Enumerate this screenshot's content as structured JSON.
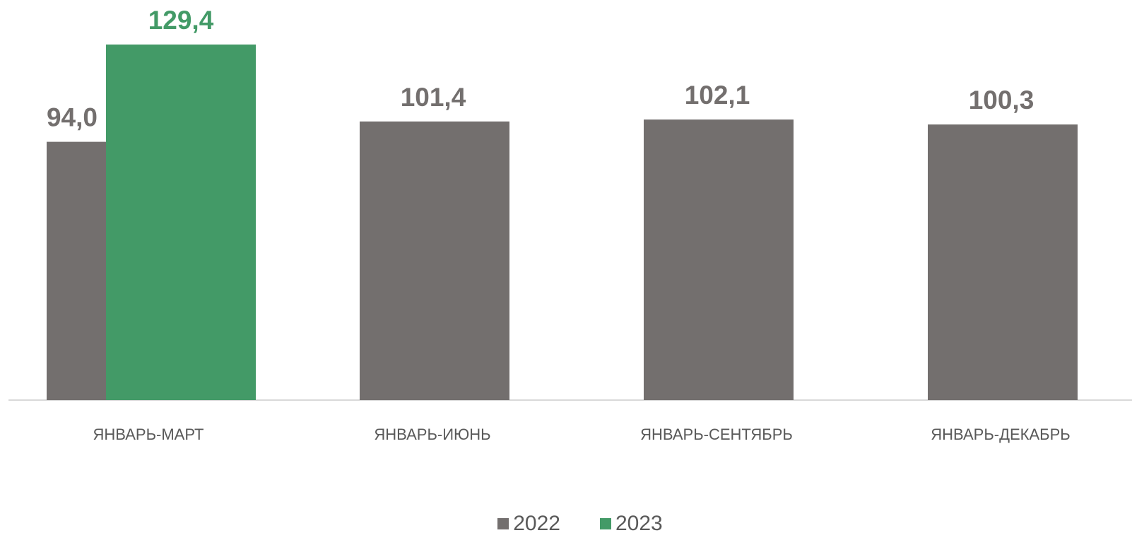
{
  "chart_data": {
    "type": "bar",
    "categories": [
      "ЯНВАРЬ-МАРТ",
      "ЯНВАРЬ-ИЮНЬ",
      "ЯНВАРЬ-СЕНТЯБРЬ",
      "ЯНВАРЬ-ДЕКАБРЬ"
    ],
    "series": [
      {
        "name": "2022",
        "color": "#736f6e",
        "values": [
          94.0,
          101.4,
          102.1,
          100.3
        ],
        "labels": [
          "94,0",
          "101,4",
          "102,1",
          "100,3"
        ]
      },
      {
        "name": "2023",
        "color": "#439a67",
        "values": [
          129.4,
          null,
          null,
          null
        ],
        "labels": [
          "129,4",
          "",
          "",
          ""
        ]
      }
    ],
    "ylim": [
      0,
      140
    ],
    "grid": false,
    "legend_position": "bottom"
  }
}
